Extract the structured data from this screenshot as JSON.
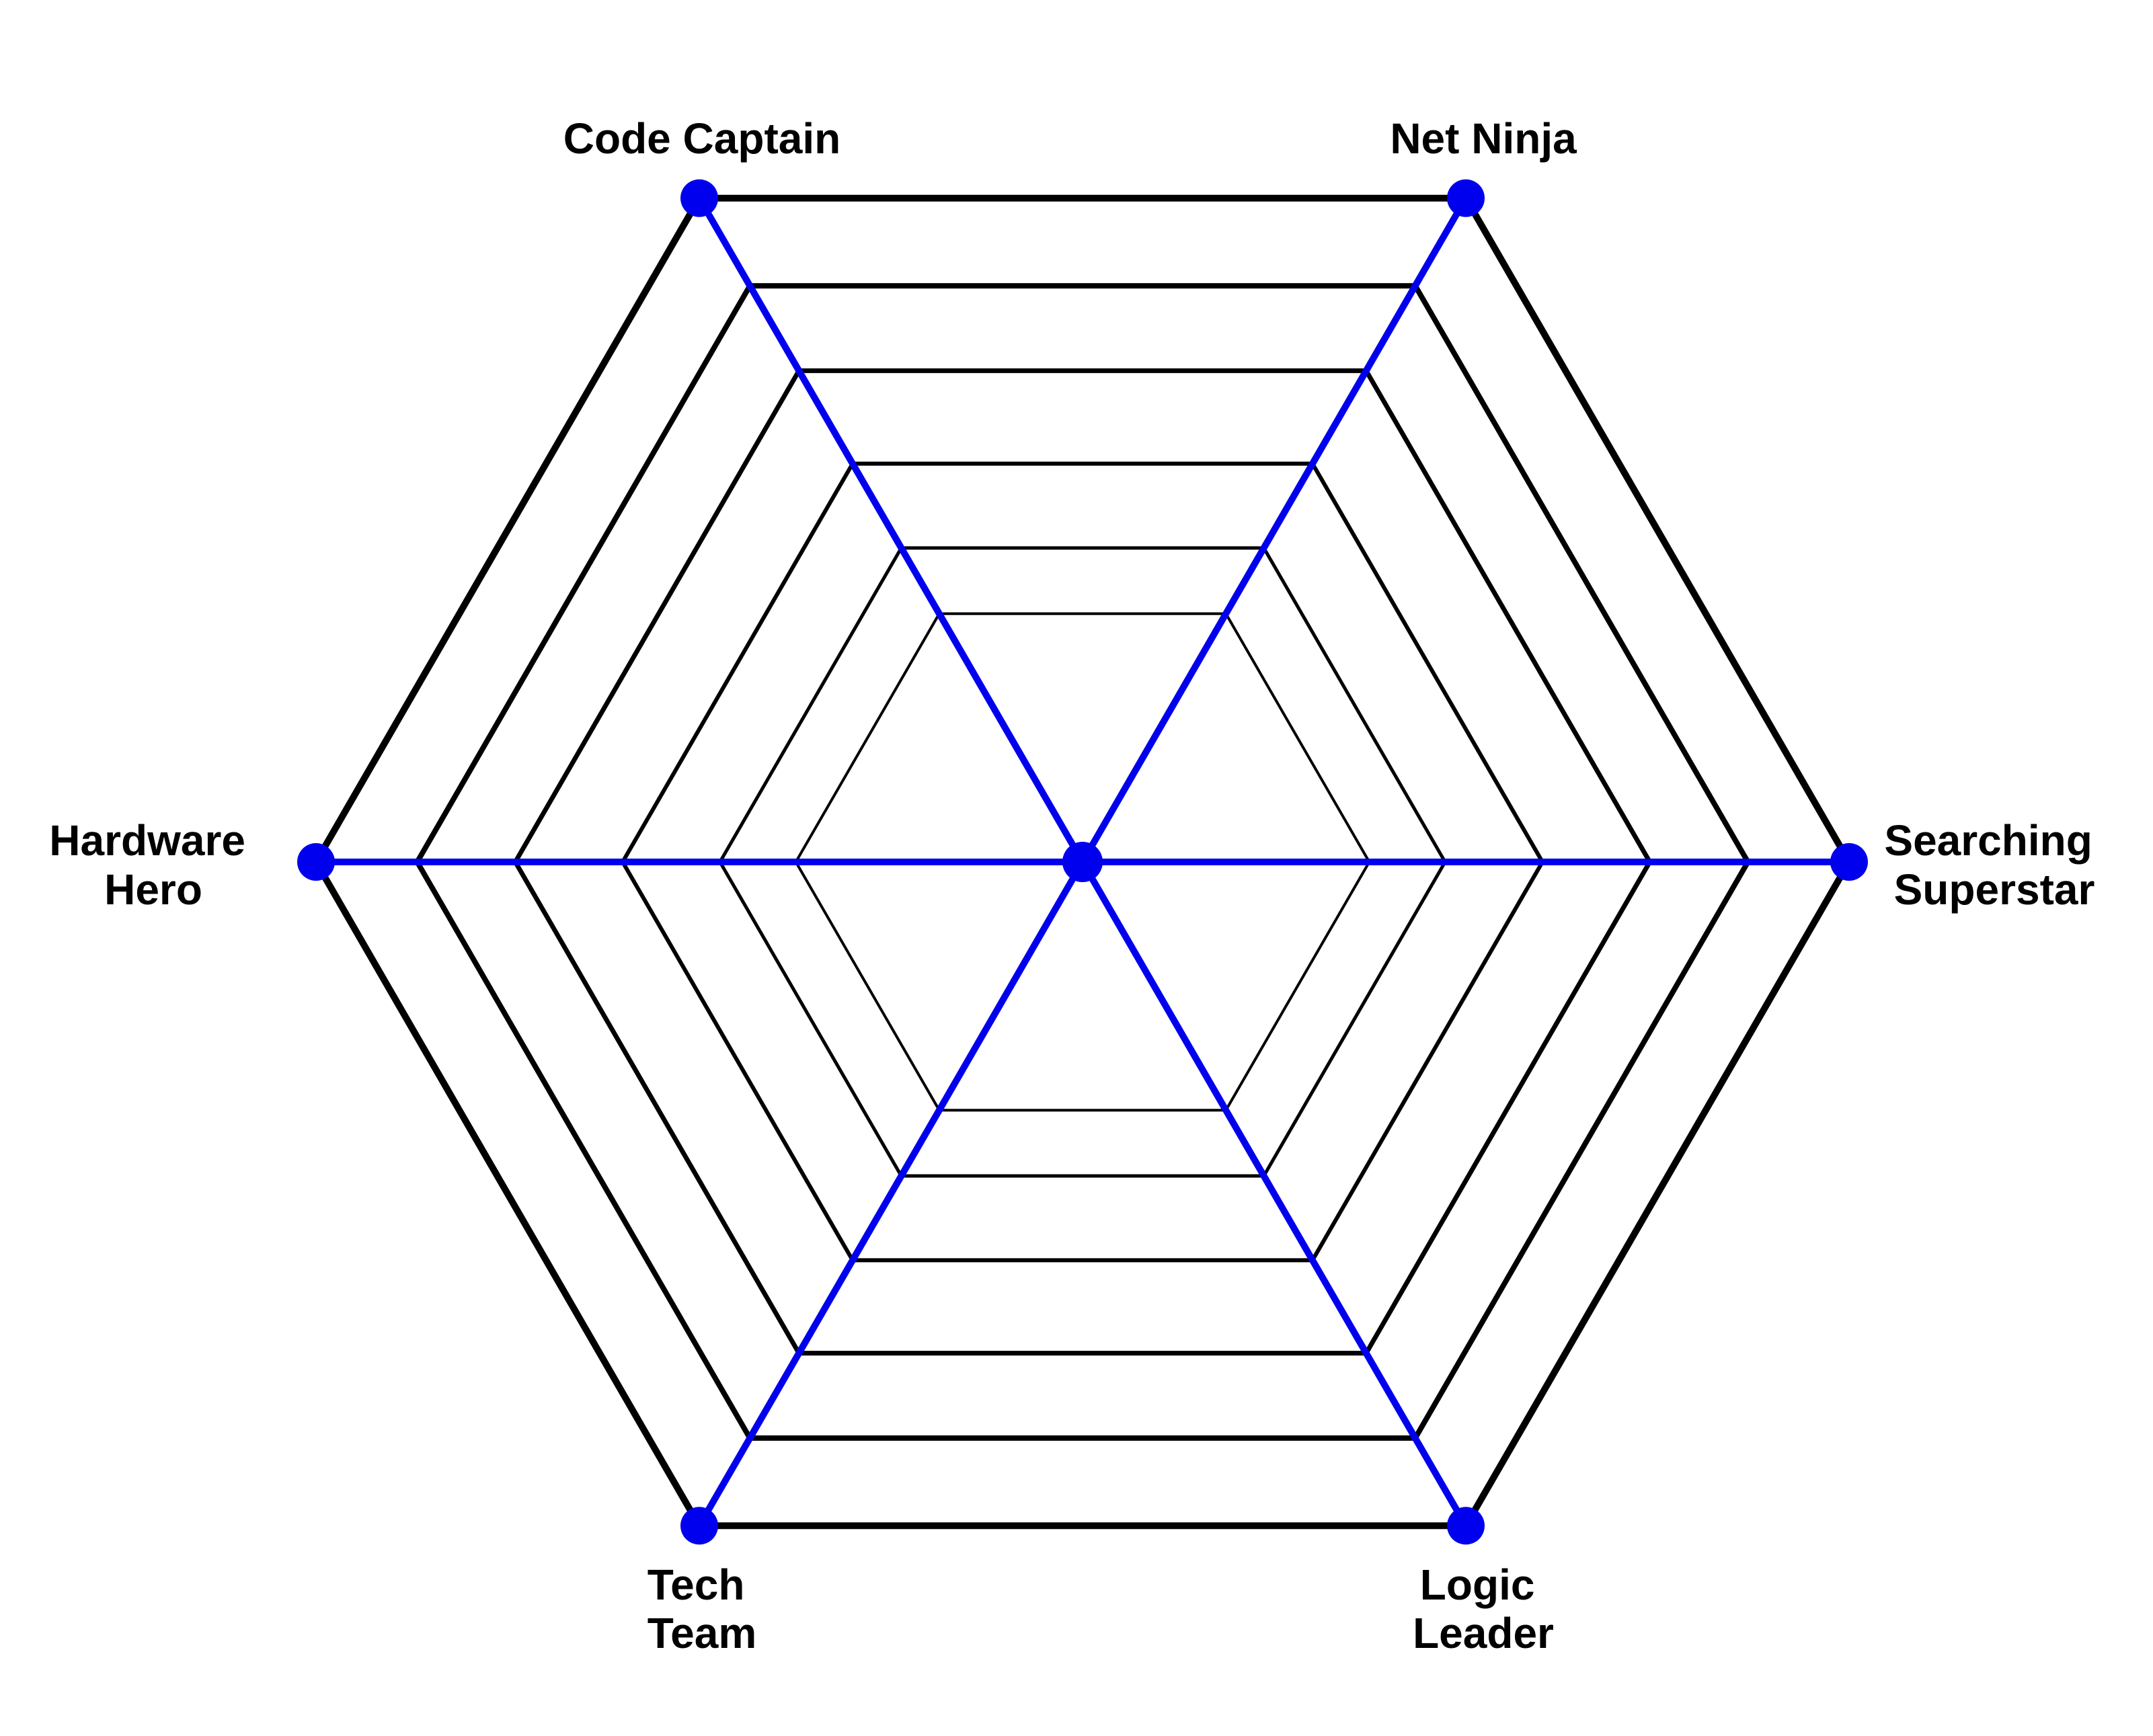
{
  "diagram": {
    "type": "hexagonal-radar-web",
    "ring_count": 6,
    "colors": {
      "rings": "#000000",
      "spokes": "#0000ee",
      "nodes": "#0000ee",
      "labels": "#000000",
      "background": "#ffffff"
    },
    "axes": [
      {
        "id": "searching-superstar",
        "label_lines": [
          "Searching",
          "Superstar"
        ]
      },
      {
        "id": "net-ninja",
        "label_lines": [
          "Net Ninja"
        ]
      },
      {
        "id": "code-captain",
        "label_lines": [
          "Code Captain"
        ]
      },
      {
        "id": "hardware-hero",
        "label_lines": [
          "Hardware",
          "Hero"
        ]
      },
      {
        "id": "tech-team",
        "label_lines": [
          "Tech",
          "Team"
        ]
      },
      {
        "id": "logic-leader",
        "label_lines": [
          "Logic",
          "Leader"
        ]
      }
    ]
  }
}
